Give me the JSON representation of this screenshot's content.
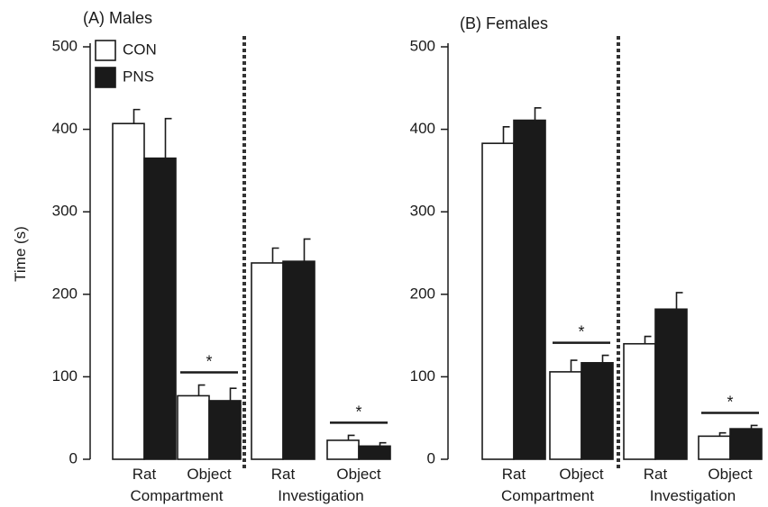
{
  "figure": {
    "ylabel": "Time (s)",
    "legend": {
      "con_label": "CON",
      "pns_label": "PNS"
    }
  },
  "chart_data": [
    {
      "type": "bar",
      "title": "(A) Males",
      "ylabel": "Time (s)",
      "ylim": [
        0,
        500
      ],
      "yticks": [
        0,
        100,
        200,
        300,
        400,
        500
      ],
      "group_labels": [
        "Compartment",
        "Investigation"
      ],
      "categories": [
        "Rat",
        "Object",
        "Rat",
        "Object"
      ],
      "series": [
        {
          "name": "CON",
          "values": [
            407,
            77,
            238,
            23
          ],
          "errors": [
            17,
            13,
            18,
            6
          ]
        },
        {
          "name": "PNS",
          "values": [
            365,
            71,
            240,
            16
          ],
          "errors": [
            48,
            15,
            27,
            4
          ]
        }
      ],
      "significance": [
        {
          "category_index": 1,
          "label": "*"
        },
        {
          "category_index": 3,
          "label": "*"
        }
      ],
      "colors": {
        "CON": "#ffffff",
        "PNS": "#1a1a1a"
      }
    },
    {
      "type": "bar",
      "title": "(B) Females",
      "ylabel": "",
      "ylim": [
        0,
        500
      ],
      "yticks": [
        0,
        100,
        200,
        300,
        400,
        500
      ],
      "group_labels": [
        "Compartment",
        "Investigation"
      ],
      "categories": [
        "Rat",
        "Object",
        "Rat",
        "Object"
      ],
      "series": [
        {
          "name": "CON",
          "values": [
            383,
            106,
            140,
            28
          ],
          "errors": [
            20,
            14,
            9,
            4
          ]
        },
        {
          "name": "PNS",
          "values": [
            411,
            117,
            182,
            37
          ],
          "errors": [
            15,
            9,
            20,
            4
          ]
        }
      ],
      "significance": [
        {
          "category_index": 1,
          "label": "*"
        },
        {
          "category_index": 3,
          "label": "*"
        }
      ],
      "colors": {
        "CON": "#ffffff",
        "PNS": "#1a1a1a"
      }
    }
  ]
}
